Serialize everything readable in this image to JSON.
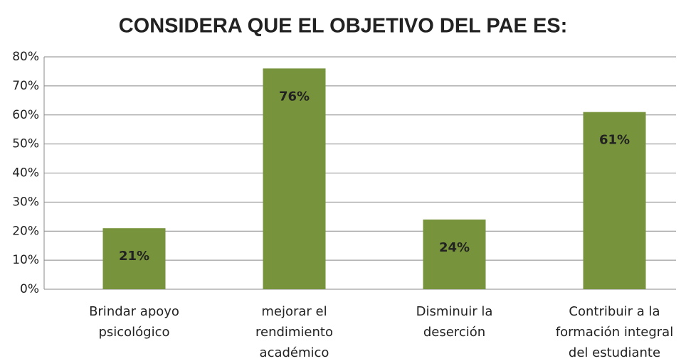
{
  "chart_data": {
    "type": "bar",
    "title": "CONSIDERA QUE EL OBJETIVO DEL PAE ES:",
    "categories": [
      "Brindar apoyo psicológico",
      "mejorar el rendimiento académico",
      "Disminuir la deserción",
      "Contribuir a la formación integral del estudiante"
    ],
    "values": [
      21,
      76,
      24,
      61
    ],
    "value_labels": [
      "21%",
      "76%",
      "24%",
      "61%"
    ],
    "color": "#77933c",
    "ylim": [
      0,
      80
    ],
    "yticks": [
      {
        "value": 0,
        "label": "0%"
      },
      {
        "value": 10,
        "label": "10%"
      },
      {
        "value": 20,
        "label": "20%"
      },
      {
        "value": 30,
        "label": "30%"
      },
      {
        "value": 40,
        "label": "40%"
      },
      {
        "value": 50,
        "label": "50%"
      },
      {
        "value": 60,
        "label": "60%"
      },
      {
        "value": 70,
        "label": "70%"
      },
      {
        "value": 80,
        "label": "80%"
      }
    ],
    "grid": true
  }
}
